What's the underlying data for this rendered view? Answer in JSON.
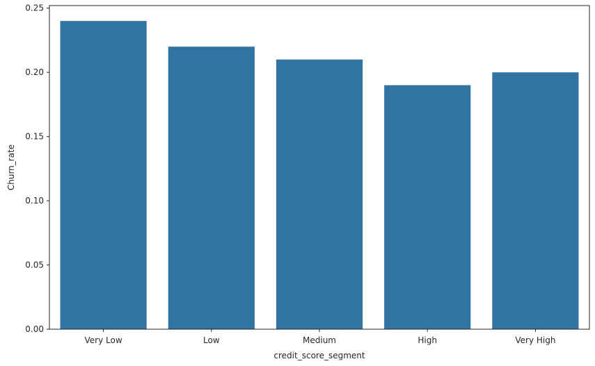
{
  "chart_data": {
    "type": "bar",
    "categories": [
      "Very Low",
      "Low",
      "Medium",
      "High",
      "Very High"
    ],
    "values": [
      0.24,
      0.22,
      0.21,
      0.19,
      0.2
    ],
    "xlabel": "credit_score_segment",
    "ylabel": "Churn_rate",
    "ylim": [
      0,
      0.252
    ],
    "yticks": [
      0.0,
      0.05,
      0.1,
      0.15,
      0.2,
      0.25
    ],
    "ytick_labels": [
      "0.00",
      "0.05",
      "0.10",
      "0.15",
      "0.20",
      "0.25"
    ],
    "bar_color": "#3274a1",
    "grid": false,
    "legend": "none"
  }
}
